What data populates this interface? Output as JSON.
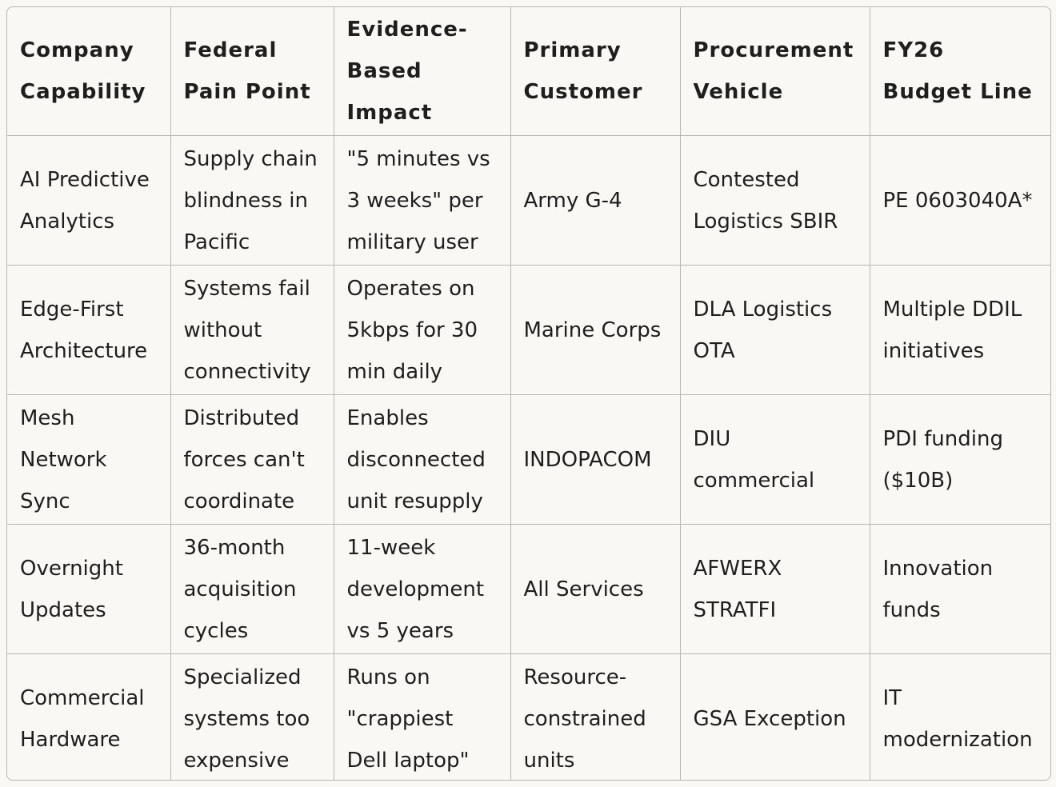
{
  "table": {
    "headers": [
      "Company Capability",
      "Federal Pain Point",
      "Evidence-Based Impact",
      "Primary Customer",
      "Procurement Vehicle",
      "FY26 Budget Line"
    ],
    "rows": [
      [
        "AI Predictive Analytics",
        "Supply chain blindness in Pacific",
        "\"5 minutes vs 3 weeks\" per military user",
        "Army G-4",
        "Contested Logistics SBIR",
        "PE 0603040A*"
      ],
      [
        "Edge-First Architecture",
        "Systems fail without connectivity",
        "Operates on 5kbps for 30 min daily",
        "Marine Corps",
        "DLA Logistics OTA",
        "Multiple DDIL initiatives"
      ],
      [
        "Mesh Network Sync",
        "Distributed forces can't coordinate",
        "Enables disconnected unit resupply",
        "INDOPACOM",
        "DIU commercial",
        "PDI funding ($10B)"
      ],
      [
        "Overnight Updates",
        "36-month acquisition cycles",
        "11-week development vs 5 years",
        "All Services",
        "AFWERX STRATFI",
        "Innovation funds"
      ],
      [
        "Commercial Hardware",
        "Specialized systems too expensive",
        "Runs on \"crappiest Dell laptop\"",
        "Resource-constrained units",
        "GSA Exception",
        "IT modernization"
      ]
    ]
  }
}
